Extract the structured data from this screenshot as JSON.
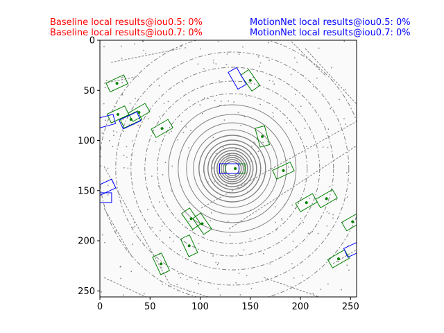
{
  "header": {
    "baseline": {
      "line1": "Baseline local results@iou0.5: 0%",
      "line2": "Baseline local results@iou0.7: 0%",
      "color": "#ff0000"
    },
    "motionnet": {
      "line1": "MotionNet local results@iou0.5: 0%",
      "line2": "MotionNet local results@iou0.7: 0%",
      "color": "#0000ff"
    }
  },
  "chart_data": {
    "type": "scatter",
    "title": "",
    "xlabel": "",
    "ylabel": "",
    "xlim": [
      0,
      256
    ],
    "ylim": [
      256,
      0
    ],
    "y_inverted": true,
    "grid": false,
    "x_ticks": [
      0,
      50,
      100,
      150,
      200,
      250
    ],
    "y_ticks": [
      0,
      50,
      100,
      150,
      200,
      250
    ],
    "background": "lidar point cloud, bird's-eye view",
    "colors": {
      "ground_truth": "#008000",
      "motionnet": "#0000ff",
      "baseline": "#ff0000",
      "points": "#808080"
    },
    "ground_truth_boxes": [
      {
        "x": 17,
        "y": 43,
        "angle": -25
      },
      {
        "x": 18,
        "y": 74,
        "angle": -25
      },
      {
        "x": 31,
        "y": 79,
        "angle": -25
      },
      {
        "x": 39,
        "y": 72,
        "angle": -30
      },
      {
        "x": 62,
        "y": 88,
        "angle": -30
      },
      {
        "x": 150,
        "y": 40,
        "angle": 55
      },
      {
        "x": 162,
        "y": 96,
        "angle": 75
      },
      {
        "x": 183,
        "y": 130,
        "angle": -25
      },
      {
        "x": 206,
        "y": 162,
        "angle": -30
      },
      {
        "x": 226,
        "y": 158,
        "angle": -30
      },
      {
        "x": 252,
        "y": 181,
        "angle": -30
      },
      {
        "x": 91,
        "y": 178,
        "angle": 55
      },
      {
        "x": 102,
        "y": 183,
        "angle": 55
      },
      {
        "x": 89,
        "y": 205,
        "angle": 65
      },
      {
        "x": 61,
        "y": 223,
        "angle": 65
      },
      {
        "x": 238,
        "y": 218,
        "angle": -30
      },
      {
        "x": 135,
        "y": 128,
        "angle": 0
      }
    ],
    "motionnet_boxes": [
      {
        "x": 5,
        "y": 81,
        "angle": -15
      },
      {
        "x": 30,
        "y": 80,
        "angle": -25
      },
      {
        "x": 137,
        "y": 38,
        "angle": 60
      },
      {
        "x": 129,
        "y": 128,
        "angle": 0
      },
      {
        "x": 5,
        "y": 147,
        "angle": -25
      },
      {
        "x": 2,
        "y": 157,
        "angle": 0
      },
      {
        "x": 254,
        "y": 208,
        "angle": -25
      }
    ]
  }
}
